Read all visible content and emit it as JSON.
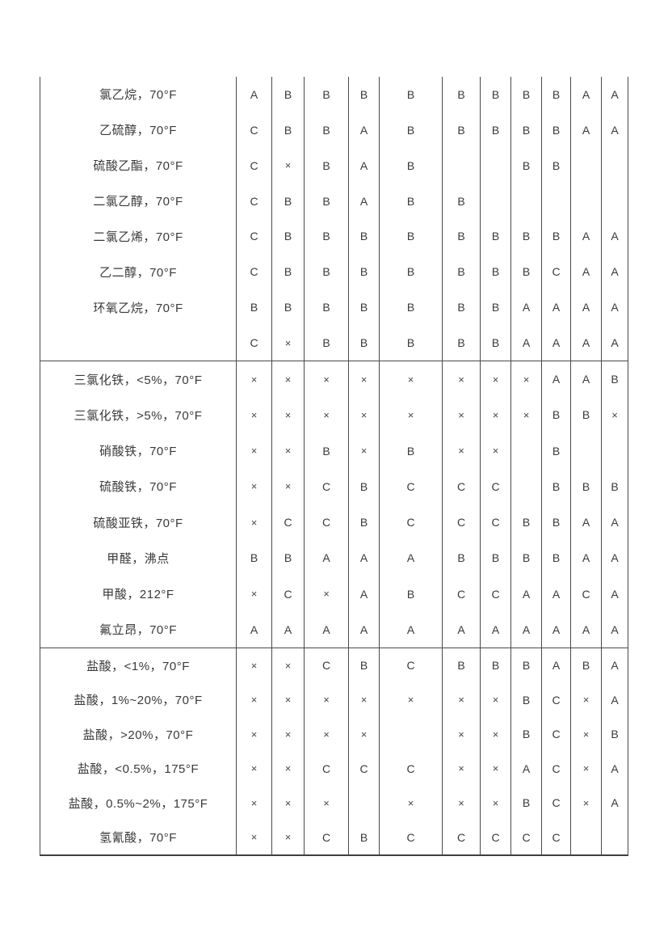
{
  "table": {
    "description": "chemical-compatibility-ratings",
    "rating_symbols": [
      "A",
      "B",
      "C",
      "×"
    ],
    "colors": {
      "background": "#ffffff",
      "text": "#3a3a3a",
      "grid_line": "#494949"
    },
    "sections": [
      {
        "name": "section-1",
        "rows": [
          {
            "label": "氯乙烷，70°F",
            "values": [
              "A",
              "B",
              "B",
              "B",
              "B",
              "B",
              "B",
              "B",
              "B",
              "A",
              "A"
            ]
          },
          {
            "label": "乙硫醇，70°F",
            "values": [
              "C",
              "B",
              "B",
              "A",
              "B",
              "B",
              "B",
              "B",
              "B",
              "A",
              "A"
            ]
          },
          {
            "label": "硫酸乙酯，70°F",
            "values": [
              "C",
              "×",
              "B",
              "A",
              "B",
              "",
              "",
              "B",
              "B",
              "",
              ""
            ]
          },
          {
            "label": "二氯乙醇，70°F",
            "values": [
              "C",
              "B",
              "B",
              "A",
              "B",
              "B",
              "",
              "",
              "",
              "",
              ""
            ]
          },
          {
            "label": "二氯乙烯，70°F",
            "values": [
              "C",
              "B",
              "B",
              "B",
              "B",
              "B",
              "B",
              "B",
              "B",
              "A",
              "A"
            ]
          },
          {
            "label": "乙二醇，70°F",
            "values": [
              "C",
              "B",
              "B",
              "B",
              "B",
              "B",
              "B",
              "B",
              "C",
              "A",
              "A"
            ]
          },
          {
            "label": "环氧乙烷，70°F",
            "values": [
              "B",
              "B",
              "B",
              "B",
              "B",
              "B",
              "B",
              "A",
              "A",
              "A",
              "A"
            ]
          },
          {
            "label": "",
            "values": [
              "C",
              "×",
              "B",
              "B",
              "B",
              "B",
              "B",
              "A",
              "A",
              "A",
              "A"
            ]
          }
        ]
      },
      {
        "name": "section-2",
        "rows": [
          {
            "label": "三氯化铁，<5%，70°F",
            "values": [
              "×",
              "×",
              "×",
              "×",
              "×",
              "×",
              "×",
              "×",
              "A",
              "A",
              "B"
            ]
          },
          {
            "label": "三氯化铁，>5%，70°F",
            "values": [
              "×",
              "×",
              "×",
              "×",
              "×",
              "×",
              "×",
              "×",
              "B",
              "B",
              "×"
            ]
          },
          {
            "label": "硝酸铁，70°F",
            "values": [
              "×",
              "×",
              "B",
              "×",
              "B",
              "×",
              "×",
              "",
              "B",
              "",
              ""
            ]
          },
          {
            "label": "硫酸铁，70°F",
            "values": [
              "×",
              "×",
              "C",
              "B",
              "C",
              "C",
              "C",
              "",
              "B",
              "B",
              "B"
            ]
          },
          {
            "label": "硫酸亚铁，70°F",
            "values": [
              "×",
              "C",
              "C",
              "B",
              "C",
              "C",
              "C",
              "B",
              "B",
              "A",
              "A"
            ]
          },
          {
            "label": "甲醛，沸点",
            "values": [
              "B",
              "B",
              "A",
              "A",
              "A",
              "B",
              "B",
              "B",
              "B",
              "A",
              "A"
            ]
          },
          {
            "label": "甲酸，212°F",
            "values": [
              "×",
              "C",
              "×",
              "A",
              "B",
              "C",
              "C",
              "A",
              "A",
              "C",
              "A"
            ]
          },
          {
            "label": "氟立昂，70°F",
            "values": [
              "A",
              "A",
              "A",
              "A",
              "A",
              "A",
              "A",
              "A",
              "A",
              "A",
              "A"
            ]
          }
        ]
      },
      {
        "name": "section-3",
        "rows": [
          {
            "label": "盐酸，<1%，70°F",
            "values": [
              "×",
              "×",
              "C",
              "B",
              "C",
              "B",
              "B",
              "B",
              "A",
              "B",
              "A"
            ]
          },
          {
            "label": "盐酸，1%~20%，70°F",
            "values": [
              "×",
              "×",
              "×",
              "×",
              "×",
              "×",
              "×",
              "B",
              "C",
              "×",
              "A"
            ]
          },
          {
            "label": "盐酸，>20%，70°F",
            "values": [
              "×",
              "×",
              "×",
              "×",
              "",
              "×",
              "×",
              "B",
              "C",
              "×",
              "B"
            ]
          },
          {
            "label": "盐酸，<0.5%，175°F",
            "values": [
              "×",
              "×",
              "C",
              "C",
              "C",
              "×",
              "×",
              "A",
              "C",
              "×",
              "A"
            ]
          },
          {
            "label": "盐酸，0.5%~2%，175°F",
            "values": [
              "×",
              "×",
              "×",
              "",
              "×",
              "×",
              "×",
              "B",
              "C",
              "×",
              "A"
            ]
          },
          {
            "label": "氢氰酸，70°F",
            "values": [
              "×",
              "×",
              "C",
              "B",
              "C",
              "C",
              "C",
              "C",
              "C",
              "",
              ""
            ]
          }
        ]
      }
    ]
  }
}
